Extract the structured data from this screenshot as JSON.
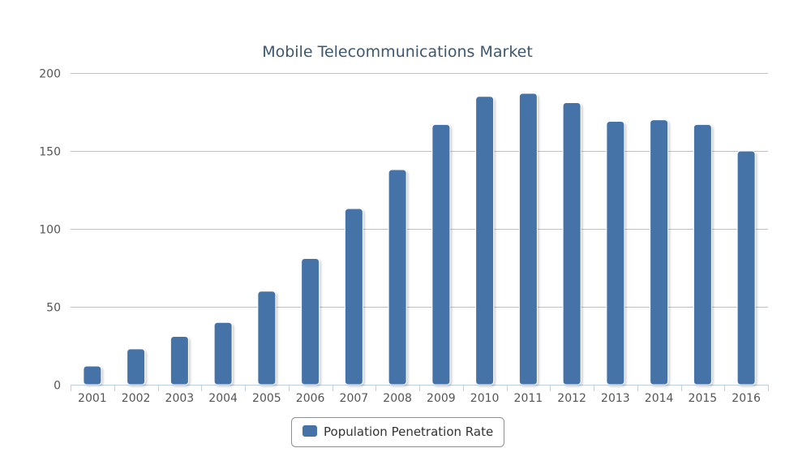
{
  "chart_data": {
    "type": "bar",
    "title": "Mobile Telecommunications Market",
    "xlabel": "",
    "ylabel": "",
    "ylim": [
      0,
      200
    ],
    "yticks": [
      0,
      50,
      100,
      150,
      200
    ],
    "categories": [
      "2001",
      "2002",
      "2003",
      "2004",
      "2005",
      "2006",
      "2007",
      "2008",
      "2009",
      "2010",
      "2011",
      "2012",
      "2013",
      "2014",
      "2015",
      "2016"
    ],
    "series": [
      {
        "name": "Population Penetration Rate",
        "values": [
          12,
          23,
          31,
          40,
          60,
          81,
          113,
          138,
          167,
          185,
          187,
          181,
          169,
          170,
          167,
          150
        ]
      }
    ],
    "legend_position": "bottom-center",
    "grid": true
  },
  "colors": {
    "bar": "#4572a7",
    "grid": "#c0c0c0",
    "axis": "#c0d0e0",
    "title": "#3e576f"
  }
}
